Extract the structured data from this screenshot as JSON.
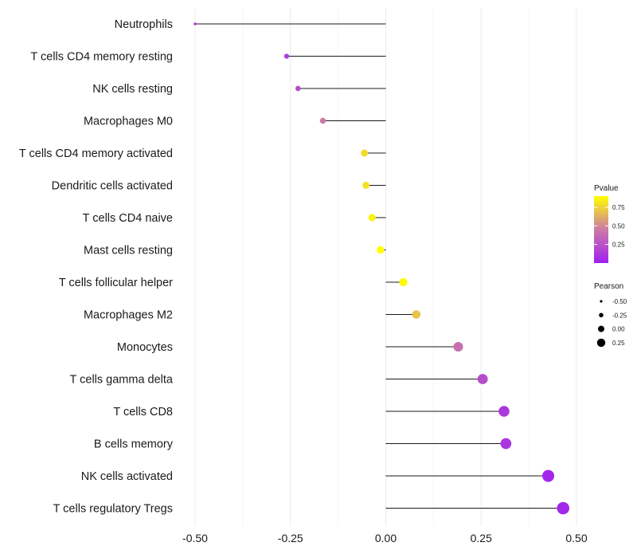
{
  "chart_data": {
    "type": "lollipop",
    "title": "",
    "xlabel": "",
    "ylabel": "",
    "xlim": [
      -0.5,
      0.5
    ],
    "x_ticks": [
      -0.5,
      -0.25,
      0.0,
      0.25,
      0.5
    ],
    "x_tick_labels": [
      "-0.50",
      "-0.25",
      "0.00",
      "0.25",
      "0.50"
    ],
    "categories": [
      "Neutrophils",
      "T cells CD4 memory resting",
      "NK cells resting",
      "Macrophages M0",
      "T cells CD4 memory activated",
      "Dendritic cells activated",
      "T cells CD4 naive",
      "Mast cells resting",
      "T cells follicular helper",
      "Macrophages M2",
      "Monocytes",
      "T cells gamma delta",
      "T cells CD8",
      "B cells memory",
      "NK cells activated",
      "T cells regulatory  Tregs"
    ],
    "pearson": [
      -0.5,
      -0.26,
      -0.23,
      -0.165,
      -0.056,
      -0.052,
      -0.036,
      -0.014,
      0.046,
      0.08,
      0.19,
      0.254,
      0.31,
      0.315,
      0.426,
      0.465
    ],
    "pvalue": [
      0.01,
      0.15,
      0.22,
      0.45,
      0.78,
      0.8,
      0.86,
      0.97,
      0.88,
      0.7,
      0.4,
      0.22,
      0.12,
      0.11,
      0.04,
      0.03
    ],
    "legend": {
      "color_title": "Pvalue",
      "color_ticks": [
        0.25,
        0.5,
        0.75
      ],
      "color_tick_labels": [
        "0.25",
        "0.50",
        "0.75"
      ],
      "color_range": [
        0.0,
        0.9
      ],
      "color_low": "#a020f0",
      "color_mid": "#cc79a7",
      "color_high": "#ffff00",
      "size_title": "Pearson",
      "size_values": [
        -0.5,
        -0.25,
        0.0,
        0.25
      ],
      "size_labels": [
        "-0.50",
        "-0.25",
        "0.00",
        "0.25"
      ],
      "placement": "right"
    },
    "grid": true
  }
}
